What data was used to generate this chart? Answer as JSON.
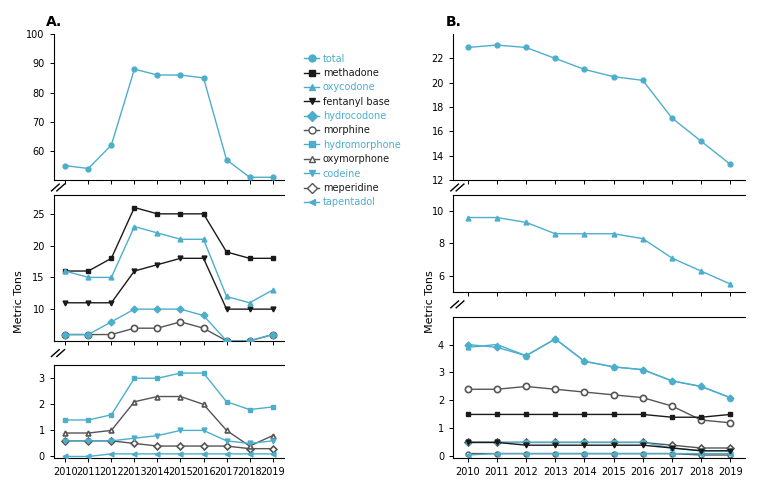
{
  "years": [
    2010,
    2011,
    2012,
    2013,
    2014,
    2015,
    2016,
    2017,
    2018,
    2019
  ],
  "panel_A": {
    "total": [
      55,
      54,
      62,
      88,
      86,
      86,
      85,
      57,
      51,
      51
    ],
    "methadone": [
      16,
      16,
      18,
      26,
      25,
      25,
      25,
      19,
      18,
      18
    ],
    "oxycodone": [
      16,
      15,
      15,
      23,
      22,
      21,
      21,
      12,
      11,
      13
    ],
    "fentanyl_base": [
      11,
      11,
      11,
      16,
      17,
      18,
      18,
      10,
      10,
      10
    ],
    "hydrocodone": [
      6,
      6,
      8,
      10,
      10,
      10,
      9,
      5,
      5,
      6
    ],
    "morphine": [
      6,
      6,
      6,
      7,
      7,
      8,
      7,
      5,
      5,
      6
    ],
    "hydromorphone": [
      1.4,
      1.4,
      1.6,
      3.0,
      3.0,
      3.2,
      3.2,
      2.1,
      1.8,
      1.9
    ],
    "oxymorphone": [
      0.9,
      0.9,
      1.0,
      2.1,
      2.3,
      2.3,
      2.0,
      1.0,
      0.4,
      0.8
    ],
    "codeine": [
      0.6,
      0.6,
      0.6,
      0.7,
      0.8,
      1.0,
      1.0,
      0.6,
      0.5,
      0.6
    ],
    "meperidine": [
      0.6,
      0.6,
      0.6,
      0.5,
      0.4,
      0.4,
      0.4,
      0.4,
      0.3,
      0.3
    ],
    "tapentadol": [
      0.0,
      0.0,
      0.1,
      0.1,
      0.1,
      0.1,
      0.1,
      0.1,
      0.1,
      0.1
    ]
  },
  "panel_B": {
    "hydrocodone": [
      22.9,
      23.1,
      22.9,
      22.0,
      21.1,
      20.5,
      20.2,
      17.1,
      15.2,
      13.3
    ],
    "oxycodone": [
      9.6,
      9.6,
      9.3,
      8.6,
      8.6,
      8.6,
      8.3,
      7.1,
      6.3,
      5.5
    ],
    "morphine": [
      3.9,
      4.0,
      3.6,
      4.2,
      3.4,
      3.2,
      3.1,
      2.7,
      2.5,
      2.1
    ],
    "hydromorphone": [
      4.0,
      3.9,
      3.6,
      4.2,
      3.4,
      3.2,
      3.1,
      2.7,
      2.5,
      2.1
    ],
    "methadone": [
      1.5,
      1.5,
      1.5,
      1.5,
      1.5,
      1.5,
      1.5,
      1.4,
      1.4,
      1.5
    ],
    "morphine2": [
      2.4,
      2.4,
      2.5,
      2.4,
      2.3,
      2.2,
      2.1,
      1.8,
      1.3,
      1.2
    ],
    "oxymorphone": [
      0.5,
      0.5,
      0.5,
      0.5,
      0.5,
      0.5,
      0.5,
      0.4,
      0.3,
      0.3
    ],
    "codeine": [
      0.5,
      0.5,
      0.5,
      0.5,
      0.5,
      0.5,
      0.5,
      0.3,
      0.2,
      0.2
    ],
    "fentanyl_base": [
      0.5,
      0.5,
      0.4,
      0.4,
      0.4,
      0.4,
      0.4,
      0.3,
      0.2,
      0.2
    ],
    "meperidine": [
      0.1,
      0.1,
      0.1,
      0.1,
      0.1,
      0.1,
      0.1,
      0.1,
      0.05,
      0.05
    ],
    "tapentadol": [
      0.05,
      0.1,
      0.1,
      0.1,
      0.1,
      0.1,
      0.1,
      0.1,
      0.1,
      0.1
    ]
  },
  "blue": "#4DAECC",
  "black": "#1a1a1a",
  "darkgray": "#555555"
}
